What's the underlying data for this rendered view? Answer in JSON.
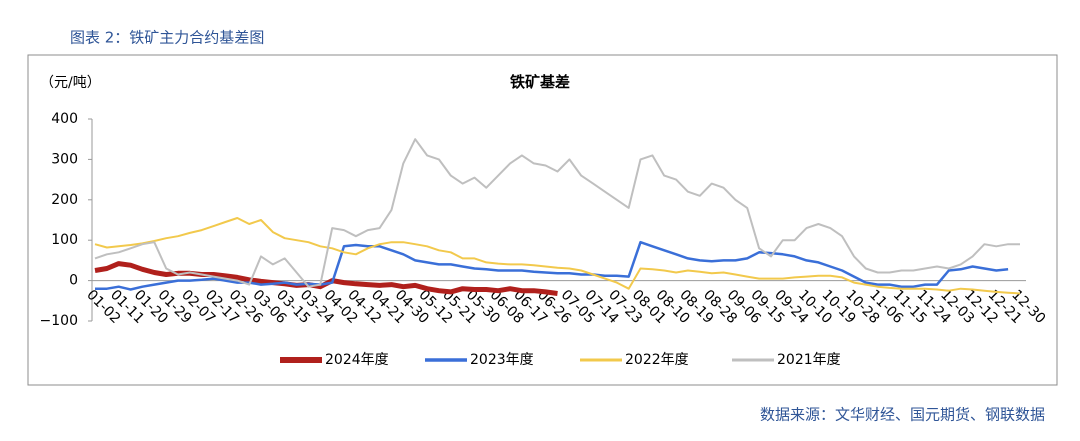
{
  "caption": "图表 2：铁矿主力合约基差图",
  "source": "数据来源：文华财经、国元期货、钢联数据",
  "chart_data": {
    "type": "line",
    "title": "铁矿基差",
    "y_label": "（元/吨）",
    "categories": [
      "01-02",
      null,
      "01-11",
      null,
      "01-20",
      null,
      "01-29",
      null,
      "02-07",
      null,
      "02-17",
      null,
      "02-26",
      null,
      "03-06",
      null,
      "03-15",
      null,
      "03-24",
      null,
      "04-02",
      null,
      "04-12",
      null,
      "04-21",
      null,
      "04-30",
      null,
      "05-12",
      null,
      "05-21",
      null,
      "05-30",
      null,
      "06-08",
      null,
      "06-17",
      null,
      "06-26",
      null,
      "07-05",
      null,
      "07-14",
      null,
      "07-23",
      null,
      "08-01",
      null,
      "08-10",
      null,
      "08-19",
      null,
      "08-28",
      null,
      "09-06",
      null,
      "09-15",
      null,
      "09-24",
      null,
      "10-10",
      null,
      "10-19",
      null,
      "10-28",
      null,
      "11-06",
      null,
      "11-15",
      null,
      "11-24",
      null,
      "12-03",
      null,
      "12-12",
      null,
      "12-21",
      null,
      "12-30"
    ],
    "series": [
      {
        "name": "2024年度",
        "color": "#b0201c",
        "width": 5,
        "values": [
          25,
          30,
          42,
          38,
          28,
          20,
          15,
          18,
          18,
          15,
          15,
          12,
          8,
          2,
          -2,
          -5,
          -8,
          -12,
          -10,
          -15,
          0,
          -5,
          -8,
          -10,
          -12,
          -10,
          -15,
          -12,
          -20,
          -25,
          -28,
          -20,
          -22,
          -22,
          -25,
          -20,
          -25,
          -25,
          -28,
          -32,
          null,
          null,
          null,
          null,
          null,
          null,
          null,
          null,
          null,
          null,
          null,
          null,
          null,
          null,
          null,
          null,
          null,
          null,
          null,
          null,
          null,
          null,
          null,
          null,
          null,
          null,
          null,
          null,
          null,
          null,
          null,
          null,
          null,
          null,
          null,
          null,
          null,
          null,
          null
        ]
      },
      {
        "name": "2023年度",
        "color": "#3a6fd8",
        "width": 2.5,
        "values": [
          -20,
          -20,
          -15,
          -22,
          -15,
          -10,
          -5,
          0,
          0,
          2,
          5,
          0,
          -5,
          -5,
          -10,
          -8,
          -5,
          -10,
          -8,
          -10,
          -5,
          85,
          88,
          85,
          85,
          75,
          65,
          50,
          45,
          40,
          40,
          35,
          30,
          28,
          25,
          25,
          25,
          22,
          20,
          18,
          18,
          15,
          15,
          12,
          12,
          10,
          95,
          85,
          75,
          65,
          55,
          50,
          48,
          50,
          50,
          55,
          70,
          68,
          65,
          60,
          50,
          45,
          35,
          25,
          10,
          -5,
          -10,
          -10,
          -15,
          -15,
          -10,
          -10,
          25,
          28,
          35,
          30,
          25,
          28,
          null
        ]
      },
      {
        "name": "2022年度",
        "color": "#f2c94c",
        "width": 2,
        "values": [
          90,
          82,
          85,
          88,
          92,
          98,
          105,
          110,
          118,
          125,
          135,
          145,
          155,
          140,
          150,
          120,
          105,
          100,
          95,
          85,
          80,
          70,
          65,
          80,
          90,
          95,
          95,
          90,
          85,
          75,
          70,
          55,
          55,
          45,
          42,
          40,
          40,
          38,
          35,
          32,
          30,
          25,
          15,
          5,
          -5,
          -20,
          30,
          28,
          25,
          20,
          25,
          22,
          18,
          20,
          15,
          10,
          5,
          5,
          5,
          8,
          10,
          12,
          12,
          8,
          -5,
          -10,
          -15,
          -18,
          -20,
          -20,
          -20,
          -22,
          -25,
          -20,
          -22,
          -25,
          -28,
          -30,
          -32
        ]
      },
      {
        "name": "2021年度",
        "color": "#bfbfbf",
        "width": 2,
        "values": [
          55,
          65,
          70,
          80,
          90,
          95,
          30,
          15,
          20,
          15,
          10,
          5,
          0,
          -10,
          60,
          40,
          55,
          20,
          -15,
          -10,
          130,
          125,
          110,
          125,
          130,
          175,
          290,
          350,
          310,
          300,
          260,
          240,
          255,
          230,
          260,
          290,
          310,
          290,
          285,
          270,
          300,
          260,
          240,
          220,
          200,
          180,
          300,
          310,
          260,
          250,
          220,
          210,
          240,
          230,
          200,
          180,
          80,
          60,
          100,
          100,
          130,
          140,
          130,
          110,
          60,
          30,
          20,
          20,
          25,
          25,
          30,
          35,
          30,
          40,
          60,
          90,
          85,
          90,
          90
        ]
      }
    ],
    "ylim": [
      -100,
      400
    ],
    "yticks": [
      {
        "value": -100,
        "label": "−100"
      },
      0,
      100,
      200,
      300,
      400
    ],
    "legend": "bottom"
  }
}
